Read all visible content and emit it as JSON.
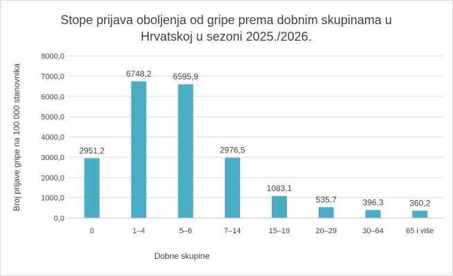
{
  "chart_data": {
    "type": "bar",
    "title_line1": "Stope prijava oboljenja od gripe prema dobnim skupinama u",
    "title_line2": "Hrvatskoj u sezoni 2025./2026.",
    "xlabel": "Dobne skupine",
    "ylabel": "Broj prijave gripe na 100 000 stanovnika",
    "categories": [
      "0",
      "1–4",
      "5–6",
      "7–14",
      "15–19",
      "20–29",
      "30–64",
      "65 i više"
    ],
    "values": [
      2951.2,
      6748.2,
      6595.9,
      2976.5,
      1083.1,
      535.7,
      396.3,
      360.2
    ],
    "value_labels": [
      "2951,2",
      "6748,2",
      "6595,9",
      "2976,5",
      "1083,1",
      "535,7",
      "396,3",
      "360,2"
    ],
    "ylim": [
      0,
      8000
    ],
    "yticks": [
      0,
      1000,
      2000,
      3000,
      4000,
      5000,
      6000,
      7000,
      8000
    ],
    "ytick_labels": [
      "0,0",
      "1000,0",
      "2000,0",
      "3000,0",
      "4000,0",
      "5000,0",
      "6000,0",
      "7000,0",
      "8000,0"
    ],
    "grid": true,
    "legend": "none",
    "bar_color": "#4BACC6"
  }
}
